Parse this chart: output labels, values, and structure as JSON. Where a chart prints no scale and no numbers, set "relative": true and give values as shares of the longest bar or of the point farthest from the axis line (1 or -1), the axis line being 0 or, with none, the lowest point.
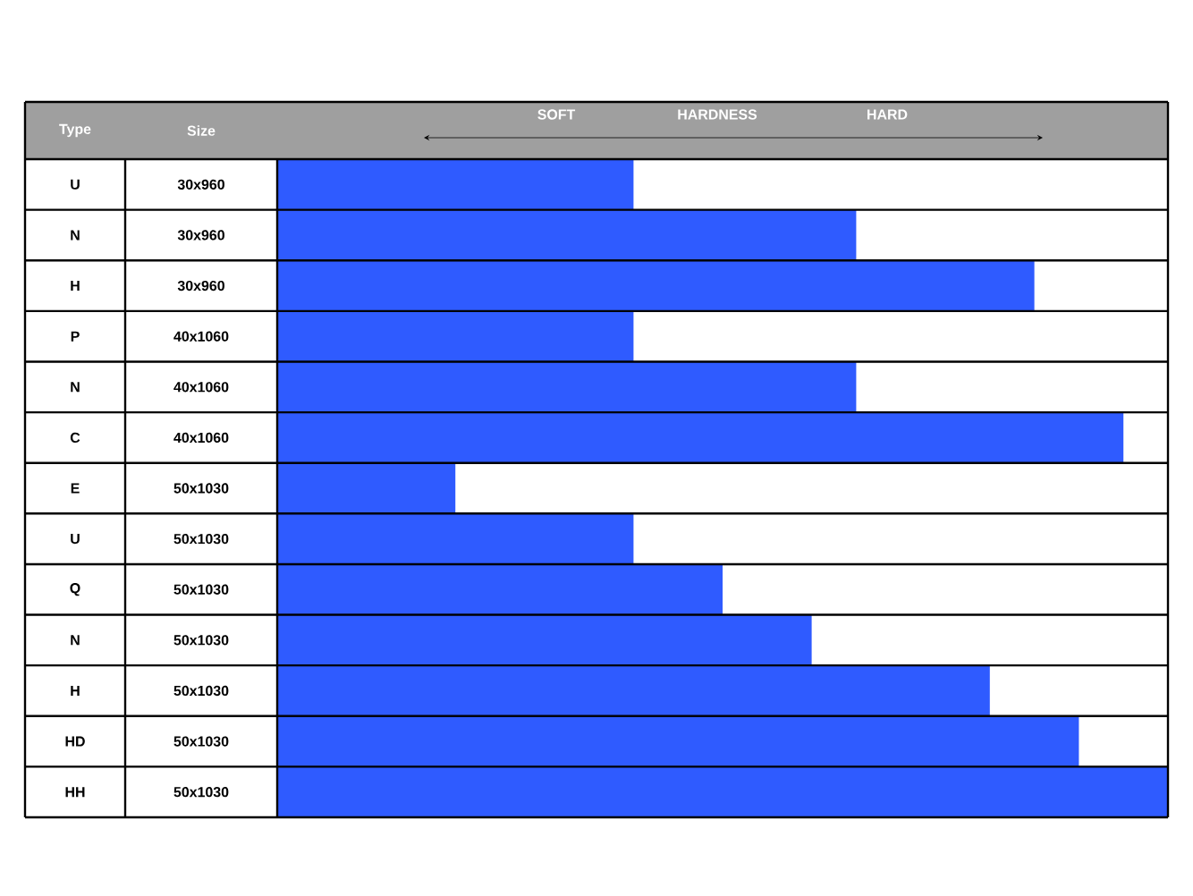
{
  "chart_data": {
    "type": "bar",
    "orientation": "horizontal",
    "relative": true,
    "xlabel": "HARDNESS",
    "color": "#2f5bff",
    "categories": [
      "U",
      "N",
      "H",
      "P",
      "N",
      "C",
      "E",
      "U",
      "Q",
      "N",
      "H",
      "HD",
      "HH"
    ],
    "values": [
      0.4,
      0.65,
      0.85,
      0.4,
      0.65,
      0.95,
      0.2,
      0.4,
      0.5,
      0.6,
      0.8,
      0.9,
      1
    ],
    "annotations": [
      "Type",
      "Size",
      "SOFT",
      "HARD",
      "30x960",
      "30x960",
      "30x960",
      "40x1060",
      "40x1060",
      "40x1060",
      "50x1030",
      "50x1030",
      "50x1030",
      "50x1030",
      "50x1030",
      "50x1030",
      "50x1030"
    ]
  }
}
